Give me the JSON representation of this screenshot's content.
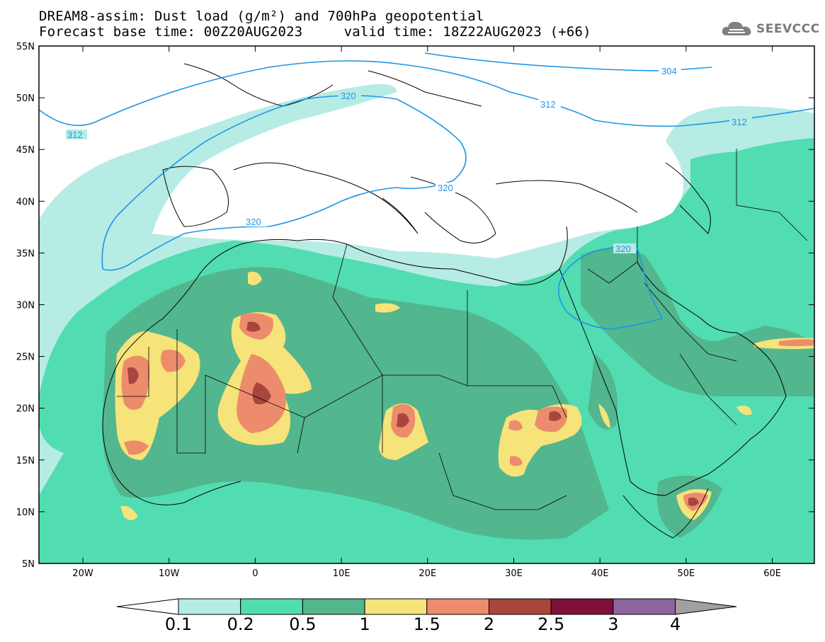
{
  "title_line1": "DREAM8-assim: Dust load (g/m²) and 700hPa geopotential",
  "title_line2": "Forecast base time: 00Z20AUG2023     valid time: 18Z22AUG2023 (+66)",
  "logo_text": "SEEVCCC",
  "lat_ticks": [
    "55N",
    "50N",
    "45N",
    "40N",
    "35N",
    "30N",
    "25N",
    "20N",
    "15N",
    "10N",
    "5N"
  ],
  "lon_ticks": [
    "20W",
    "10W",
    "0",
    "10E",
    "20E",
    "30E",
    "40E",
    "50E",
    "60E"
  ],
  "contour_labels": [
    "304",
    "312",
    "312",
    "312",
    "320",
    "320",
    "320",
    "320"
  ],
  "colorbar": {
    "labels": [
      "0.1",
      "0.2",
      "0.5",
      "1",
      "1.5",
      "2",
      "2.5",
      "3",
      "4"
    ],
    "colors": [
      "#ffffff",
      "#b6ece4",
      "#52dcb2",
      "#52b68e",
      "#f6e37a",
      "#ec8c6c",
      "#a8463e",
      "#80103a",
      "#8c66a0",
      "#a0a0a0"
    ]
  },
  "colors": {
    "land_bg": "#ffffff",
    "level1": "#b6ece4",
    "level2": "#52dcb2",
    "level3": "#52b68e",
    "level4": "#f6e37a",
    "level5": "#ec8c6c",
    "level6": "#a8463e",
    "contour": "#1e96e6"
  }
}
